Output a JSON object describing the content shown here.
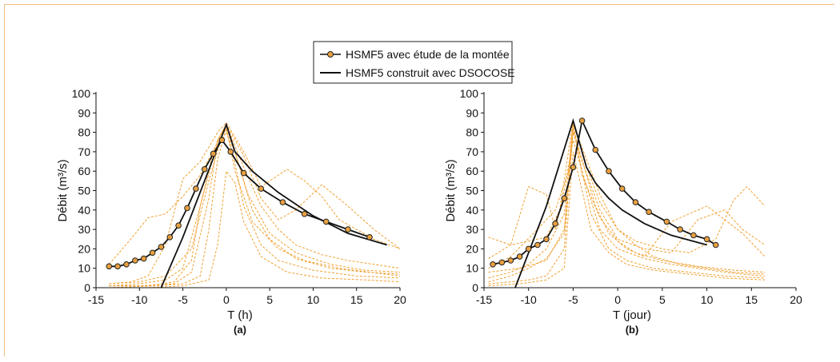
{
  "legend": [
    {
      "label": "HSMF5 avec étude de la montée",
      "marker": "circle"
    },
    {
      "label": "HSMF5 construit avec DSOCOSE",
      "marker": "none"
    }
  ],
  "colors": {
    "dashed": "#f0a030",
    "marker_fill": "#e8a040",
    "line": "#111111"
  },
  "chart_data": [
    {
      "type": "line",
      "panel_label": "(a)",
      "xlabel": "T (h)",
      "ylabel": "Débit (m³/s)",
      "xlim": [
        -15,
        20
      ],
      "ylim": [
        0,
        100
      ],
      "xticks": [
        -15,
        -10,
        -5,
        0,
        5,
        10,
        15,
        20
      ],
      "yticks": [
        0,
        10,
        20,
        30,
        40,
        50,
        60,
        70,
        80,
        90,
        100
      ],
      "series": [
        {
          "name": "HSMF5 avec étude de la montée",
          "style": "solid-markers",
          "x": [
            -13.5,
            -12.5,
            -11.5,
            -10.5,
            -9.5,
            -8.5,
            -7.5,
            -6.5,
            -5.5,
            -4.5,
            -3.5,
            -2.5,
            -1.5,
            -0.5,
            0.5,
            2,
            4,
            6.5,
            9,
            11.5,
            14,
            16.5
          ],
          "y": [
            11,
            11,
            12,
            14,
            15,
            18,
            21,
            26,
            32,
            41,
            51,
            61,
            69,
            76,
            70,
            59,
            51,
            44,
            38,
            34,
            30,
            26
          ]
        },
        {
          "name": "HSMF5 construit avec DSOCOSE",
          "style": "solid",
          "x": [
            -7.5,
            -5,
            -2.5,
            0,
            1,
            3,
            6,
            10,
            14,
            18.5
          ],
          "y": [
            0,
            26,
            55,
            84,
            70,
            60,
            49,
            37,
            28,
            22
          ]
        },
        {
          "style": "dashed",
          "x": [
            -13.5,
            -11,
            -9,
            -7,
            -5,
            -3,
            -1,
            0,
            2,
            4,
            6,
            8,
            11,
            14,
            17,
            20
          ],
          "y": [
            12,
            25,
            36,
            38,
            47,
            58,
            75,
            84,
            62,
            42,
            30,
            22,
            17,
            14,
            12,
            10
          ]
        },
        {
          "style": "dashed",
          "x": [
            -13.5,
            -11,
            -9,
            -7,
            -5,
            -3,
            -1,
            0,
            2,
            4,
            7,
            9,
            11,
            13,
            17,
            20
          ],
          "y": [
            2,
            3,
            6,
            22,
            56,
            65,
            80,
            85,
            70,
            52,
            61,
            55,
            47,
            35,
            25,
            20
          ]
        },
        {
          "style": "dashed",
          "x": [
            -13.5,
            -10,
            -7,
            -5,
            -3,
            -1,
            0,
            2,
            4,
            6,
            8,
            11,
            14,
            17,
            20
          ],
          "y": [
            1,
            2,
            4,
            10,
            42,
            76,
            84,
            68,
            46,
            35,
            40,
            53,
            42,
            30,
            20
          ]
        },
        {
          "style": "dashed",
          "x": [
            -13.5,
            -10,
            -6,
            -4,
            -2,
            -1,
            0,
            1,
            3,
            5,
            8,
            12,
            16,
            20
          ],
          "y": [
            1,
            1,
            2,
            8,
            46,
            76,
            84,
            70,
            40,
            25,
            15,
            10,
            8,
            7
          ]
        },
        {
          "style": "dashed",
          "x": [
            -13.5,
            -8,
            -5,
            -3,
            -2,
            -1,
            0,
            1,
            2,
            4,
            6,
            10,
            15,
            20
          ],
          "y": [
            0,
            1,
            2,
            6,
            30,
            66,
            82,
            64,
            42,
            22,
            14,
            9,
            6,
            5
          ]
        },
        {
          "style": "dashed",
          "x": [
            -13.5,
            -9,
            -6,
            -4,
            -3,
            -1.5,
            0,
            1,
            2.5,
            5,
            8,
            12,
            16,
            20
          ],
          "y": [
            1,
            1,
            3,
            14,
            42,
            70,
            80,
            70,
            48,
            28,
            18,
            12,
            9,
            8
          ]
        },
        {
          "style": "dashed",
          "x": [
            -13.5,
            -9,
            -5,
            -2,
            -1,
            0,
            1,
            2,
            4,
            7,
            11,
            16,
            20
          ],
          "y": [
            0,
            0,
            1,
            4,
            22,
            60,
            54,
            34,
            16,
            8,
            5,
            4,
            3
          ]
        },
        {
          "style": "dashed",
          "x": [
            -13.5,
            -10,
            -7,
            -4,
            -2,
            -0.5,
            0,
            1,
            3,
            6,
            9,
            13,
            20
          ],
          "y": [
            2,
            3,
            6,
            20,
            55,
            78,
            82,
            60,
            34,
            20,
            14,
            10,
            6
          ]
        }
      ]
    },
    {
      "type": "line",
      "panel_label": "(b)",
      "xlabel": "T (jour)",
      "ylabel": "Débit (m³/s)",
      "xlim": [
        -15,
        20
      ],
      "ylim": [
        0,
        100
      ],
      "xticks": [
        -15,
        -10,
        -5,
        0,
        5,
        10,
        15,
        20
      ],
      "yticks": [
        0,
        10,
        20,
        30,
        40,
        50,
        60,
        70,
        80,
        90,
        100
      ],
      "series": [
        {
          "name": "HSMF5 avec étude de la montée",
          "style": "solid-markers",
          "x": [
            -14,
            -13,
            -12,
            -11,
            -10,
            -9,
            -8,
            -7,
            -6,
            -5,
            -4,
            -2.5,
            -1,
            0.5,
            2,
            3.5,
            5.5,
            7,
            8.5,
            10,
            11
          ],
          "y": [
            12,
            13,
            14,
            16,
            20,
            22,
            25,
            33,
            46,
            62,
            86,
            71,
            60,
            51,
            44,
            39,
            34,
            30,
            27,
            25,
            22
          ]
        },
        {
          "name": "HSMF5 construit avec DSOCOSE",
          "style": "solid",
          "x": [
            -11.5,
            -8,
            -5,
            -4,
            -3.5,
            -2.5,
            -1,
            0.5,
            3,
            6,
            10
          ],
          "y": [
            0,
            42,
            86,
            70,
            62,
            54,
            46,
            40,
            33,
            27,
            22
          ]
        },
        {
          "style": "dashed",
          "x": [
            -14.5,
            -12,
            -10,
            -8,
            -7,
            -6,
            -5,
            -4,
            -2,
            0,
            3,
            6,
            9,
            12,
            14,
            16.5
          ],
          "y": [
            26,
            22,
            52,
            48,
            30,
            50,
            76,
            60,
            30,
            20,
            15,
            12,
            10,
            8,
            7,
            6
          ]
        },
        {
          "style": "dashed",
          "x": [
            -14.5,
            -12,
            -10,
            -8,
            -6.5,
            -5,
            -3.5,
            -2,
            0,
            2,
            5,
            8,
            11,
            13,
            14.5,
            16.5
          ],
          "y": [
            15,
            22,
            24,
            26,
            40,
            86,
            62,
            44,
            30,
            24,
            20,
            18,
            25,
            45,
            52,
            42
          ]
        },
        {
          "style": "dashed",
          "x": [
            -14.5,
            -12,
            -10,
            -8,
            -6,
            -5,
            -4,
            -2,
            0,
            2,
            4,
            7,
            10,
            13,
            16.5
          ],
          "y": [
            5,
            8,
            12,
            20,
            38,
            84,
            72,
            48,
            30,
            22,
            16,
            12,
            10,
            8,
            7
          ]
        },
        {
          "style": "dashed",
          "x": [
            -14.5,
            -12,
            -10,
            -8,
            -6,
            -5,
            -4,
            -2,
            0,
            3,
            6,
            9,
            12,
            14,
            16.5
          ],
          "y": [
            3,
            6,
            10,
            15,
            28,
            80,
            65,
            40,
            25,
            20,
            18,
            35,
            40,
            30,
            22
          ]
        },
        {
          "style": "dashed",
          "x": [
            -14.5,
            -12,
            -10,
            -8,
            -6,
            -5,
            -4,
            -3,
            -1,
            1,
            4,
            8,
            12,
            16.5
          ],
          "y": [
            2,
            3,
            4,
            6,
            20,
            82,
            60,
            38,
            20,
            14,
            10,
            8,
            6,
            5
          ]
        },
        {
          "style": "dashed",
          "x": [
            -14.5,
            -11,
            -8,
            -6,
            -5,
            -4,
            -2.5,
            -1,
            1,
            3,
            6,
            10,
            14,
            16.5
          ],
          "y": [
            8,
            10,
            14,
            30,
            82,
            66,
            42,
            28,
            20,
            16,
            34,
            42,
            28,
            16
          ]
        },
        {
          "style": "dashed",
          "x": [
            -14.5,
            -12,
            -9,
            -7,
            -5.5,
            -5,
            -4,
            -2,
            0,
            2,
            5,
            9,
            13,
            16.5
          ],
          "y": [
            10,
            16,
            30,
            40,
            60,
            86,
            58,
            36,
            24,
            18,
            14,
            11,
            9,
            8
          ]
        },
        {
          "style": "dashed",
          "x": [
            -14.5,
            -11,
            -8,
            -6,
            -5,
            -4,
            -3,
            -1,
            1,
            4,
            8,
            12,
            16.5
          ],
          "y": [
            1,
            2,
            4,
            10,
            70,
            50,
            30,
            18,
            12,
            9,
            7,
            5,
            4
          ]
        }
      ]
    }
  ]
}
